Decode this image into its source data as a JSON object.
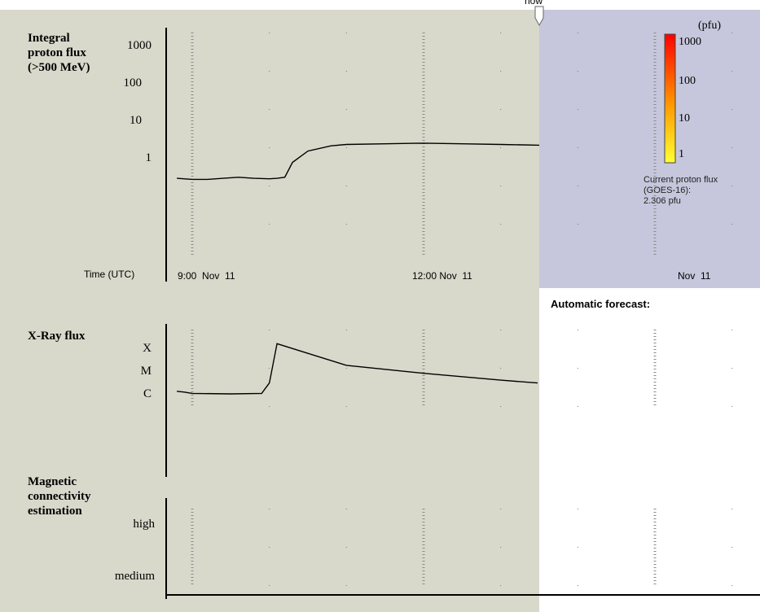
{
  "now_label": "now",
  "proton_panel": {
    "title_lines": [
      "Integral",
      "proton flux",
      "(>500 MeV)"
    ],
    "y_ticks": [
      "1000",
      "100",
      "10",
      "1"
    ],
    "time_axis_label": "Time (UTC)",
    "time_ticks": [
      "9:00  Nov  11",
      "12:00 Nov  11",
      "Nov  11"
    ]
  },
  "xray_panel": {
    "title": "X-Ray flux",
    "y_ticks": [
      "X",
      "M",
      "C"
    ]
  },
  "magnetic_panel": {
    "title_lines": [
      "Magnetic",
      "connectivity",
      "estimation"
    ],
    "y_ticks": [
      "high",
      "medium"
    ]
  },
  "color_scale": {
    "unit": "(pfu)",
    "labels": [
      "1000",
      "100",
      "10",
      "1"
    ],
    "colors": [
      "#ff0000",
      "#ff9900",
      "#ffff33"
    ]
  },
  "current_flux": {
    "line1": "Current proton flux",
    "line2": "(GOES-16):",
    "line3": "2.306 pfu"
  },
  "forecast": {
    "title": "Automatic forecast:"
  },
  "colors": {
    "plot_bg": "#d8d9cb",
    "future_bg": "#c6c7dc",
    "line": "#000000"
  },
  "chart_data": [
    {
      "type": "line",
      "title": "Integral proton flux (>500 MeV)",
      "xlabel": "Time (UTC)",
      "ylabel": "pfu",
      "yscale": "log",
      "ylim": [
        0.1,
        1000
      ],
      "x_ticks": [
        "9:00 Nov 11",
        "12:00 Nov 11"
      ],
      "x_hours": [
        8.8,
        9.0,
        9.2,
        9.4,
        9.6,
        9.8,
        10.0,
        10.1,
        10.2,
        10.3,
        10.5,
        10.8,
        11.0,
        11.5,
        12.0,
        12.5,
        13.0,
        13.5
      ],
      "values": [
        0.3,
        0.28,
        0.28,
        0.3,
        0.32,
        0.3,
        0.29,
        0.3,
        0.32,
        0.8,
        1.6,
        2.2,
        2.4,
        2.5,
        2.6,
        2.5,
        2.4,
        2.3
      ],
      "grid": true
    },
    {
      "type": "line",
      "title": "X-Ray flux",
      "yscale": "log",
      "y_ticks": [
        "X",
        "M",
        "C"
      ],
      "x_hours": [
        8.8,
        8.9,
        9.0,
        9.5,
        9.9,
        10.0,
        10.1,
        10.5,
        11.0,
        12.0,
        13.0,
        13.5
      ],
      "values": [
        1.3e-06,
        1.2e-06,
        1.05e-06,
        1e-06,
        1.05e-06,
        3e-06,
        0.00016,
        6e-05,
        1.8e-05,
        8e-06,
        4e-06,
        3e-06
      ]
    },
    {
      "type": "line",
      "title": "Magnetic connectivity estimation",
      "y_ticks": [
        "high",
        "medium"
      ],
      "x_hours": [],
      "values": []
    }
  ]
}
